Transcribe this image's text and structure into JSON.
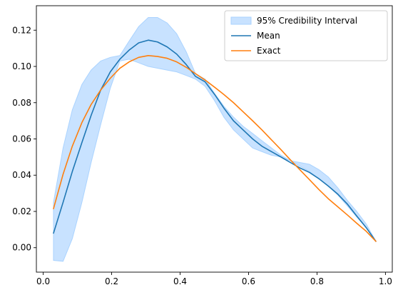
{
  "chart_data": {
    "type": "line",
    "title": "",
    "xlabel": "",
    "ylabel": "",
    "xlim": [
      -0.02,
      1.02
    ],
    "ylim": [
      -0.0135,
      0.1335
    ],
    "xticks": [
      0.0,
      0.2,
      0.4,
      0.6,
      0.8,
      1.0
    ],
    "xtick_labels": [
      "0.0",
      "0.2",
      "0.4",
      "0.6",
      "0.8",
      "1.0"
    ],
    "yticks": [
      0.0,
      0.02,
      0.04,
      0.06,
      0.08,
      0.1,
      0.12
    ],
    "ytick_labels": [
      "0.00",
      "0.02",
      "0.04",
      "0.06",
      "0.08",
      "0.10",
      "0.12"
    ],
    "grid": false,
    "legend_position": "top-right",
    "band": {
      "name": "95% Credibility Interval",
      "color": "#aad3ff",
      "x": [
        0.03,
        0.058,
        0.085,
        0.113,
        0.14,
        0.168,
        0.196,
        0.224,
        0.251,
        0.279,
        0.307,
        0.334,
        0.362,
        0.39,
        0.418,
        0.445,
        0.473,
        0.501,
        0.528,
        0.556,
        0.584,
        0.612,
        0.639,
        0.667,
        0.695,
        0.722,
        0.75,
        0.778,
        0.806,
        0.833,
        0.861,
        0.889,
        0.916,
        0.944,
        0.972
      ],
      "lower": [
        -0.007,
        -0.0075,
        0.005,
        0.025,
        0.047,
        0.068,
        0.088,
        0.103,
        0.104,
        0.102,
        0.1,
        0.099,
        0.098,
        0.097,
        0.095,
        0.093,
        0.089,
        0.081,
        0.072,
        0.065,
        0.06,
        0.055,
        0.053,
        0.051,
        0.05,
        0.048,
        0.045,
        0.042,
        0.038,
        0.034,
        0.029,
        0.023,
        0.017,
        0.011,
        0.0035
      ],
      "upper": [
        0.025,
        0.055,
        0.076,
        0.09,
        0.098,
        0.103,
        0.105,
        0.106,
        0.114,
        0.122,
        0.127,
        0.127,
        0.124,
        0.118,
        0.108,
        0.096,
        0.093,
        0.085,
        0.078,
        0.072,
        0.067,
        0.063,
        0.059,
        0.055,
        0.051,
        0.048,
        0.047,
        0.046,
        0.043,
        0.039,
        0.033,
        0.026,
        0.02,
        0.013,
        0.0035
      ]
    },
    "series": [
      {
        "name": "Mean",
        "color": "#1f77b4",
        "x": [
          0.03,
          0.058,
          0.085,
          0.113,
          0.14,
          0.168,
          0.196,
          0.224,
          0.251,
          0.279,
          0.307,
          0.334,
          0.362,
          0.39,
          0.418,
          0.445,
          0.473,
          0.501,
          0.528,
          0.556,
          0.584,
          0.612,
          0.639,
          0.667,
          0.695,
          0.722,
          0.75,
          0.778,
          0.806,
          0.833,
          0.861,
          0.889,
          0.916,
          0.944,
          0.972
        ],
        "y": [
          0.008,
          0.025,
          0.042,
          0.058,
          0.073,
          0.087,
          0.097,
          0.104,
          0.109,
          0.113,
          0.1145,
          0.1135,
          0.1108,
          0.1068,
          0.101,
          0.0945,
          0.0915,
          0.0845,
          0.077,
          0.07,
          0.065,
          0.06,
          0.056,
          0.053,
          0.05,
          0.047,
          0.044,
          0.0415,
          0.038,
          0.034,
          0.0295,
          0.024,
          0.0175,
          0.011,
          0.0035
        ]
      },
      {
        "name": "Exact",
        "color": "#ff7f0e",
        "x": [
          0.03,
          0.058,
          0.085,
          0.113,
          0.14,
          0.168,
          0.196,
          0.224,
          0.251,
          0.279,
          0.307,
          0.334,
          0.362,
          0.39,
          0.418,
          0.445,
          0.473,
          0.501,
          0.528,
          0.556,
          0.584,
          0.612,
          0.639,
          0.667,
          0.695,
          0.722,
          0.75,
          0.778,
          0.806,
          0.833,
          0.861,
          0.889,
          0.916,
          0.944,
          0.972
        ],
        "y": [
          0.0215,
          0.0405,
          0.056,
          0.069,
          0.079,
          0.087,
          0.0935,
          0.099,
          0.1025,
          0.105,
          0.106,
          0.1055,
          0.1045,
          0.1025,
          0.0995,
          0.096,
          0.0925,
          0.0885,
          0.0845,
          0.08,
          0.075,
          0.07,
          0.065,
          0.0595,
          0.054,
          0.0485,
          0.043,
          0.0375,
          0.032,
          0.027,
          0.0225,
          0.018,
          0.0135,
          0.009,
          0.0035
        ]
      }
    ]
  }
}
